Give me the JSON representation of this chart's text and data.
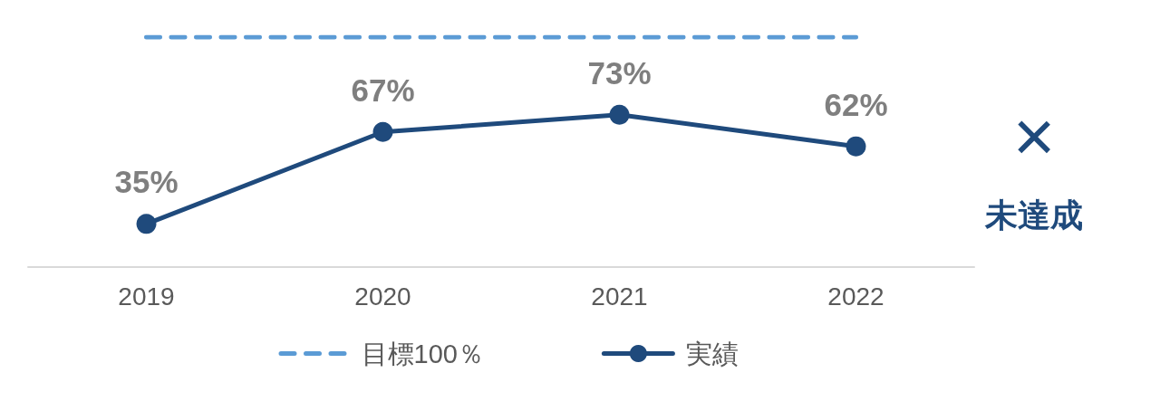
{
  "chart_data": {
    "type": "line",
    "categories": [
      "2019",
      "2020",
      "2021",
      "2022"
    ],
    "series": [
      {
        "name": "目標100％",
        "color": "#5b9bd5",
        "values": [
          100,
          100,
          100,
          100
        ],
        "line_style": "dashed",
        "marker": "none"
      },
      {
        "name": "実績",
        "color": "#1f4a7c",
        "values": [
          35,
          67,
          73,
          62
        ],
        "value_labels": [
          "35%",
          "67%",
          "73%",
          "62%"
        ],
        "line_style": "solid",
        "marker": "circle"
      }
    ],
    "tick_labels": "x",
    "grid": false,
    "legend": "bottom",
    "annotations": [
      "×",
      "未達成"
    ]
  }
}
